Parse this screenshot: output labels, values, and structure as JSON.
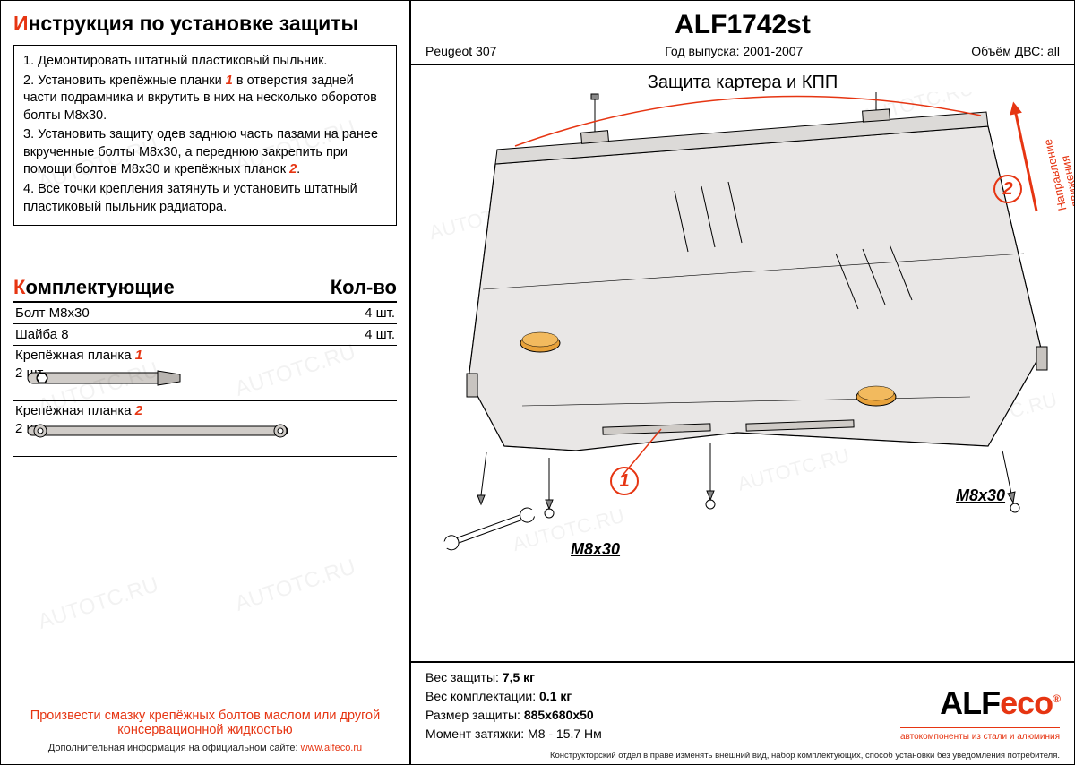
{
  "instructions": {
    "title_prefix": "И",
    "title_rest": "нструкция по установке защиты",
    "steps": [
      "1.  Демонтировать штатный пластиковый пыльник.",
      "2.  Установить крепёжные планки <span class='red-num'>1</span> в отверстия задней части подрамника и вкрутить в них на несколько оборотов болты М8х30.",
      "3.  Установить защиту одев заднюю часть пазами на ранее вкрученные болты М8х30, а переднюю закрепить при помощи болтов М8х30 и крепёжных планок <span class='red-num'>2</span>.",
      "4.  Все точки крепления затянуть и установить штатный пластиковый пыльник радиатора."
    ]
  },
  "parts": {
    "title_prefix": "К",
    "title_rest": "омплектующие",
    "qty_header": "Кол-во",
    "rows": [
      {
        "name": "Болт М8х30",
        "qty": "4 шт."
      },
      {
        "name": "Шайба 8",
        "qty": "4 шт."
      },
      {
        "name": "Крепёжная планка <span class='red-num'>1</span>",
        "qty": "2 шт.",
        "graphic": "plank1"
      },
      {
        "name": "Крепёжная планка <span class='red-num'>2</span>",
        "qty": "2 шт.",
        "graphic": "plank2"
      }
    ]
  },
  "footer": {
    "note": "Произвести смазку крепёжных болтов маслом или другой консервационной жидкостью",
    "small_pre": "Дополнительная информация на официальном сайте: ",
    "small_link": "www.alfeco.ru"
  },
  "header": {
    "part_no": "ALF1742st",
    "vehicle": "Peugeot 307",
    "year_label": "Год выпуска:",
    "year_value": "2001-2007",
    "engine_label": "Объём ДВС:",
    "engine_value": "all"
  },
  "diagram": {
    "title": "Защита картера и КПП",
    "direction_label": "Направление\nдвижения",
    "callout1": "1",
    "callout2": "2",
    "bolt_label": "М8х30",
    "shield_fill": "#e9e7e6",
    "shield_stroke": "#000000",
    "hole_color": "#e8a23a",
    "accent_color": "#e63512"
  },
  "specs": {
    "weight_label": "Вес защиты:",
    "weight_value": "7,5 кг",
    "kit_weight_label": "Вес комплектации:",
    "kit_weight_value": "0.1 кг",
    "size_label": "Размер защиты:",
    "size_value": "885x680x50",
    "torque_label": "Момент затяжки:",
    "torque_value": "М8 - 15.7 Нм"
  },
  "logo": {
    "main": "ALF",
    "eco": "eco",
    "reg": "®",
    "sub": "автокомпоненты из стали и алюминия"
  },
  "disclaimer": "Конструкторский отдел в праве изменять внешний вид, набор комплектующих, способ установки без уведомления потребителя.",
  "watermark_text": "AUTOTC.RU"
}
